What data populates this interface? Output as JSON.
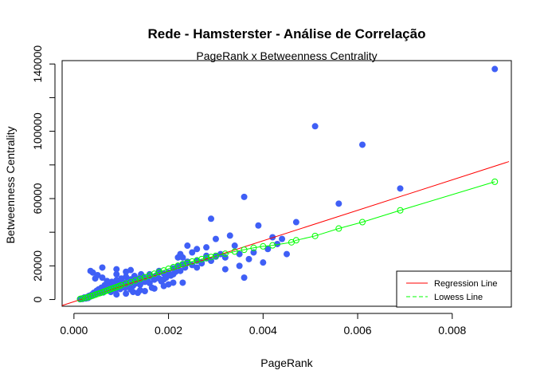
{
  "chart_data": {
    "type": "scatter",
    "title": "Rede - Hamsterster - Análise de Correlação",
    "subtitle": "PageRank x Betweenness Centrality",
    "xlabel": "PageRank",
    "ylabel": "Betweenness Centrality",
    "xlim": [
      0,
      0.0092
    ],
    "ylim": [
      0,
      140000
    ],
    "x_ticks": [
      0.0,
      0.002,
      0.004,
      0.006,
      0.008
    ],
    "x_tick_labels": [
      "0.000",
      "0.002",
      "0.004",
      "0.006",
      "0.008"
    ],
    "y_ticks": [
      0,
      20000,
      60000,
      100000,
      140000
    ],
    "y_tick_labels": [
      "0",
      "20000",
      "60000",
      "100000",
      "140000"
    ],
    "grid": false,
    "legend_position": "bottom-right",
    "colors": {
      "points": "#3f5ff6",
      "regression": "#ff0000",
      "lowess": "#00ff00"
    },
    "series": [
      {
        "type": "scatter",
        "points": [
          [
            0.00013,
            200
          ],
          [
            0.00015,
            500
          ],
          [
            0.00018,
            300
          ],
          [
            0.0002,
            800
          ],
          [
            0.00022,
            1200
          ],
          [
            0.00025,
            600
          ],
          [
            0.00028,
            1500
          ],
          [
            0.0003,
            900
          ],
          [
            0.00032,
            2200
          ],
          [
            0.00035,
            1800
          ],
          [
            0.00038,
            3000
          ],
          [
            0.0004,
            2500
          ],
          [
            0.00042,
            4000
          ],
          [
            0.00045,
            3300
          ],
          [
            0.00048,
            5200
          ],
          [
            0.0005,
            4500
          ],
          [
            0.00052,
            6000
          ],
          [
            0.00055,
            3800
          ],
          [
            0.00058,
            7000
          ],
          [
            0.0006,
            5200
          ],
          [
            0.00062,
            4200
          ],
          [
            0.00065,
            8500
          ],
          [
            0.00068,
            6100
          ],
          [
            0.0007,
            9500
          ],
          [
            0.00072,
            5500
          ],
          [
            0.00075,
            7600
          ],
          [
            0.00078,
            4500
          ],
          [
            0.0008,
            10500
          ],
          [
            0.00082,
            6800
          ],
          [
            0.00085,
            8300
          ],
          [
            0.00088,
            5800
          ],
          [
            0.0009,
            11500
          ],
          [
            0.00092,
            7500
          ],
          [
            0.00095,
            9200
          ],
          [
            0.00098,
            6200
          ],
          [
            0.001,
            12500
          ],
          [
            0.00102,
            8000
          ],
          [
            0.00105,
            10000
          ],
          [
            0.00108,
            7000
          ],
          [
            0.0011,
            13500
          ],
          [
            0.00112,
            9000
          ],
          [
            0.00115,
            11200
          ],
          [
            0.00118,
            7500
          ],
          [
            0.0012,
            12000
          ],
          [
            0.00122,
            10200
          ],
          [
            0.00125,
            8200
          ],
          [
            0.00128,
            14000
          ],
          [
            0.0013,
            9500
          ],
          [
            0.00132,
            11500
          ],
          [
            0.00135,
            10000
          ],
          [
            0.00138,
            12500
          ],
          [
            0.0014,
            8800
          ],
          [
            0.00142,
            15000
          ],
          [
            0.00145,
            11000
          ],
          [
            0.00148,
            13000
          ],
          [
            0.0015,
            10500
          ],
          [
            0.00155,
            12000
          ],
          [
            0.0016,
            9800
          ],
          [
            0.00165,
            13500
          ],
          [
            0.0017,
            11800
          ],
          [
            0.00175,
            14500
          ],
          [
            0.0018,
            12500
          ],
          [
            0.00185,
            10800
          ],
          [
            0.0019,
            15500
          ],
          [
            0.00195,
            13000
          ],
          [
            0.002,
            16000
          ],
          [
            0.00205,
            14200
          ],
          [
            0.0021,
            18500
          ],
          [
            0.00215,
            16500
          ],
          [
            0.0022,
            20000
          ],
          [
            0.00225,
            17000
          ],
          [
            0.0023,
            21000
          ],
          [
            0.00235,
            19000
          ],
          [
            0.0024,
            22500
          ],
          [
            0.0025,
            20500
          ],
          [
            0.0026,
            23000
          ],
          [
            0.0027,
            21500
          ],
          [
            0.0028,
            24500
          ],
          [
            0.0029,
            23000
          ],
          [
            0.003,
            25500
          ],
          [
            0.00035,
            17000
          ],
          [
            0.0004,
            16000
          ],
          [
            0.00045,
            12500
          ],
          [
            0.0005,
            14500
          ],
          [
            0.0006,
            13000
          ],
          [
            0.0007,
            11000
          ],
          [
            0.0009,
            15000
          ],
          [
            0.0011,
            16500
          ],
          [
            0.0012,
            17500
          ],
          [
            0.0009,
            18000
          ],
          [
            0.0006,
            19000
          ],
          [
            0.0021,
            15000
          ],
          [
            0.0022,
            25000
          ],
          [
            0.00225,
            27000
          ],
          [
            0.0023,
            25000
          ],
          [
            0.0024,
            32000
          ],
          [
            0.0025,
            28000
          ],
          [
            0.0026,
            30000
          ],
          [
            0.0026,
            19000
          ],
          [
            0.0027,
            22000
          ],
          [
            0.0028,
            26000
          ],
          [
            0.0029,
            48000
          ],
          [
            0.0028,
            31000
          ],
          [
            0.003,
            36000
          ],
          [
            0.0031,
            27000
          ],
          [
            0.0032,
            25000
          ],
          [
            0.0033,
            38000
          ],
          [
            0.0034,
            32000
          ],
          [
            0.0035,
            27000
          ],
          [
            0.0036,
            61000
          ],
          [
            0.0036,
            13000
          ],
          [
            0.0037,
            24000
          ],
          [
            0.0038,
            28000
          ],
          [
            0.0039,
            44000
          ],
          [
            0.004,
            22000
          ],
          [
            0.0041,
            30000
          ],
          [
            0.0042,
            37000
          ],
          [
            0.0043,
            33000
          ],
          [
            0.0044,
            36000
          ],
          [
            0.0045,
            27000
          ],
          [
            0.0047,
            46000
          ],
          [
            0.0051,
            103000
          ],
          [
            0.0056,
            57000
          ],
          [
            0.0061,
            92000
          ],
          [
            0.0069,
            66000
          ],
          [
            0.0089,
            137000
          ],
          [
            0.0016,
            15000
          ],
          [
            0.0018,
            17000
          ],
          [
            0.0019,
            12000
          ],
          [
            0.0021,
            10000
          ],
          [
            0.0012,
            6000
          ],
          [
            0.0014,
            5500
          ],
          [
            0.00165,
            7000
          ],
          [
            0.0017,
            6500
          ],
          [
            0.0009,
            3000
          ],
          [
            0.0011,
            3500
          ],
          [
            0.00125,
            4500
          ],
          [
            0.00135,
            4000
          ],
          [
            0.0015,
            5000
          ],
          [
            0.0019,
            8000
          ],
          [
            0.002,
            9000
          ],
          [
            0.0023,
            10000
          ],
          [
            0.0035,
            20000
          ],
          [
            0.0032,
            18000
          ]
        ]
      },
      {
        "name": "Regression Line",
        "type": "line",
        "points": [
          [
            -0.0003,
            -4000
          ],
          [
            0.0092,
            82000
          ]
        ]
      },
      {
        "name": "Lowess Line",
        "type": "line",
        "marker": "circle",
        "points": [
          [
            0.00013,
            300
          ],
          [
            0.00018,
            600
          ],
          [
            0.00025,
            1000
          ],
          [
            0.0003,
            1400
          ],
          [
            0.00035,
            1900
          ],
          [
            0.0004,
            2300
          ],
          [
            0.00045,
            2800
          ],
          [
            0.0005,
            3300
          ],
          [
            0.00055,
            3800
          ],
          [
            0.0006,
            4300
          ],
          [
            0.00065,
            4800
          ],
          [
            0.0007,
            5300
          ],
          [
            0.00075,
            5900
          ],
          [
            0.0008,
            6400
          ],
          [
            0.00085,
            6900
          ],
          [
            0.0009,
            7400
          ],
          [
            0.00095,
            7900
          ],
          [
            0.001,
            8500
          ],
          [
            0.0011,
            9400
          ],
          [
            0.0012,
            10300
          ],
          [
            0.0013,
            11300
          ],
          [
            0.0014,
            12300
          ],
          [
            0.0015,
            13300
          ],
          [
            0.0016,
            14300
          ],
          [
            0.0017,
            15300
          ],
          [
            0.0018,
            16300
          ],
          [
            0.0019,
            17300
          ],
          [
            0.002,
            18300
          ],
          [
            0.0021,
            19200
          ],
          [
            0.0022,
            20100
          ],
          [
            0.0023,
            21000
          ],
          [
            0.0024,
            21800
          ],
          [
            0.0025,
            22600
          ],
          [
            0.0026,
            23300
          ],
          [
            0.0027,
            24000
          ],
          [
            0.0028,
            24700
          ],
          [
            0.0029,
            25300
          ],
          [
            0.003,
            26000
          ],
          [
            0.0032,
            27200
          ],
          [
            0.0034,
            28500
          ],
          [
            0.0036,
            29600
          ],
          [
            0.0038,
            30700
          ],
          [
            0.004,
            31600
          ],
          [
            0.0042,
            32200
          ],
          [
            0.0046,
            34000
          ],
          [
            0.0047,
            35200
          ],
          [
            0.0051,
            37800
          ],
          [
            0.0056,
            42200
          ],
          [
            0.0061,
            46000
          ],
          [
            0.0069,
            53000
          ],
          [
            0.0089,
            70000
          ]
        ]
      }
    ]
  },
  "legend": {
    "regression_label": "Regression Line",
    "lowess_label": "Lowess Line"
  }
}
